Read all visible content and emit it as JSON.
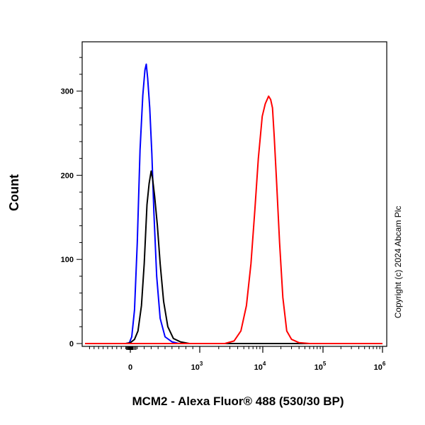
{
  "chart_data": {
    "type": "line",
    "xlabel": "MCM2 - Alexa Fluor® 488 (530/30 BP)",
    "ylabel": "Count",
    "x_scale": "biexponential",
    "xlim": [
      -1000,
      1000000
    ],
    "ylim": [
      0,
      345
    ],
    "x_ticks": [
      {
        "value": 0,
        "base": "0",
        "exp": ""
      },
      {
        "value": 1000,
        "base": "10",
        "exp": "3"
      },
      {
        "value": 10000,
        "base": "10",
        "exp": "4"
      },
      {
        "value": 100000,
        "base": "10",
        "exp": "5"
      },
      {
        "value": 1000000,
        "base": "10",
        "exp": "6"
      }
    ],
    "y_ticks": [
      0,
      100,
      200,
      300
    ],
    "copyright": "Copyright (c) 2024 Abcam Plc",
    "series": [
      {
        "color": "#0000ff",
        "points": [
          [
            -1000,
            0
          ],
          [
            -100,
            0
          ],
          [
            -20,
            1
          ],
          [
            20,
            8
          ],
          [
            60,
            40
          ],
          [
            100,
            120
          ],
          [
            140,
            230
          ],
          [
            180,
            295
          ],
          [
            210,
            325
          ],
          [
            230,
            332
          ],
          [
            250,
            315
          ],
          [
            280,
            280
          ],
          [
            310,
            225
          ],
          [
            340,
            155
          ],
          [
            380,
            80
          ],
          [
            430,
            30
          ],
          [
            500,
            8
          ],
          [
            600,
            2
          ],
          [
            700,
            0
          ],
          [
            1000000,
            0
          ]
        ]
      },
      {
        "color": "#000000",
        "points": [
          [
            -1000,
            0
          ],
          [
            -100,
            0
          ],
          [
            0,
            1
          ],
          [
            60,
            5
          ],
          [
            110,
            15
          ],
          [
            160,
            45
          ],
          [
            200,
            95
          ],
          [
            240,
            165
          ],
          [
            270,
            190
          ],
          [
            300,
            205
          ],
          [
            320,
            196
          ],
          [
            350,
            175
          ],
          [
            390,
            140
          ],
          [
            430,
            95
          ],
          [
            480,
            50
          ],
          [
            540,
            20
          ],
          [
            620,
            6
          ],
          [
            720,
            2
          ],
          [
            850,
            0
          ],
          [
            1000000,
            0
          ]
        ]
      },
      {
        "color": "#ff0000",
        "points": [
          [
            -1000,
            0
          ],
          [
            2500,
            0
          ],
          [
            3500,
            3
          ],
          [
            4500,
            15
          ],
          [
            5500,
            45
          ],
          [
            6500,
            95
          ],
          [
            7500,
            160
          ],
          [
            8500,
            220
          ],
          [
            9800,
            270
          ],
          [
            11000,
            285
          ],
          [
            12500,
            294
          ],
          [
            13500,
            290
          ],
          [
            14500,
            280
          ],
          [
            15500,
            245
          ],
          [
            17000,
            190
          ],
          [
            19000,
            120
          ],
          [
            21500,
            55
          ],
          [
            25000,
            15
          ],
          [
            30000,
            5
          ],
          [
            40000,
            1
          ],
          [
            60000,
            0
          ],
          [
            1000000,
            0
          ]
        ]
      }
    ]
  }
}
